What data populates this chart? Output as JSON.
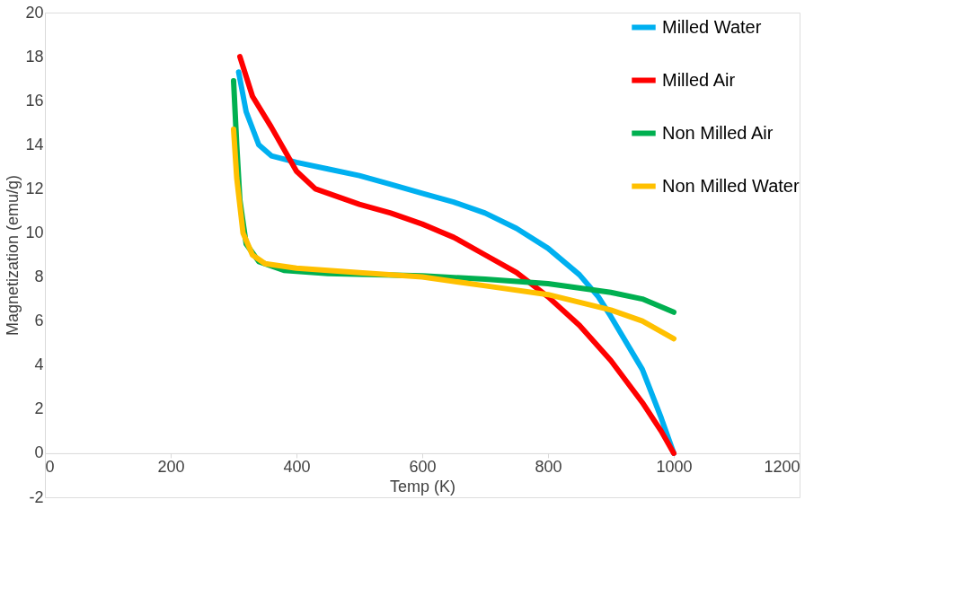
{
  "chart_data": {
    "type": "line",
    "xlabel": "Temp (K)",
    "ylabel": "Magnetization (emu/g)",
    "xlim": [
      0,
      1200
    ],
    "xticks": [
      0,
      200,
      400,
      600,
      800,
      1000,
      1200
    ],
    "ylim": [
      -2,
      20
    ],
    "yticks": [
      -2,
      0,
      2,
      4,
      6,
      8,
      10,
      12,
      14,
      16,
      18,
      20
    ],
    "grid": false,
    "legend": "top right",
    "marker": "none",
    "line_style": "solid",
    "series": [
      {
        "name": "Milled Water",
        "color": "#00b0f0",
        "x": [
          308,
          320,
          340,
          360,
          400,
          450,
          500,
          550,
          600,
          650,
          700,
          750,
          800,
          850,
          880,
          900,
          950,
          980,
          1000
        ],
        "values": [
          17.3,
          15.5,
          14.0,
          13.5,
          13.2,
          12.9,
          12.6,
          12.2,
          11.8,
          11.4,
          10.9,
          10.2,
          9.3,
          8.1,
          7.1,
          6.2,
          3.8,
          1.6,
          0
        ]
      },
      {
        "name": "Milled Air",
        "color": "#ff0000",
        "x": [
          310,
          330,
          360,
          400,
          430,
          500,
          550,
          600,
          650,
          700,
          750,
          800,
          850,
          900,
          950,
          980,
          1000
        ],
        "values": [
          18.0,
          16.2,
          14.8,
          12.8,
          12.0,
          11.3,
          10.9,
          10.4,
          9.8,
          9.0,
          8.2,
          7.1,
          5.8,
          4.2,
          2.3,
          1.0,
          0
        ]
      },
      {
        "name": "Non Milled Air",
        "color": "#00b050",
        "x": [
          300,
          305,
          310,
          320,
          340,
          380,
          450,
          600,
          700,
          800,
          900,
          950,
          1000
        ],
        "values": [
          16.9,
          14.0,
          11.5,
          9.5,
          8.7,
          8.3,
          8.15,
          8.05,
          7.9,
          7.7,
          7.3,
          7.0,
          6.4
        ]
      },
      {
        "name": "Non Milled Water",
        "color": "#ffc000",
        "x": [
          300,
          305,
          315,
          330,
          350,
          400,
          500,
          600,
          700,
          800,
          900,
          950,
          1000
        ],
        "values": [
          14.7,
          12.5,
          10.0,
          9.0,
          8.6,
          8.4,
          8.2,
          8.0,
          7.6,
          7.2,
          6.5,
          6.0,
          5.2
        ]
      }
    ]
  }
}
